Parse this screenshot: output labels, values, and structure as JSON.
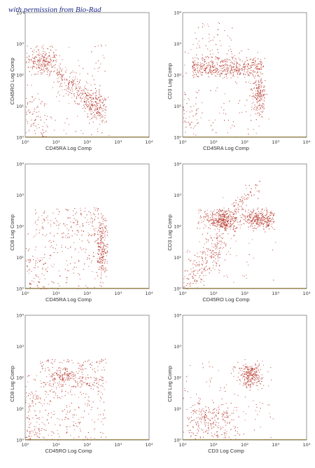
{
  "credit": "with permission from Bio-Rad",
  "colors": {
    "dots": "#b22a1e",
    "baseline": "#8a6a1a",
    "frame": "#7a7a7a",
    "credit": "#1e2a8a"
  },
  "chart_data": [
    {
      "id": "p1",
      "type": "scatter",
      "xlabel": "CD45RA Log Comp",
      "ylabel": "CD45RO Log Comp",
      "xscale": "log",
      "yscale": "log",
      "xlim": [
        1,
        10000
      ],
      "ylim": [
        1,
        10000
      ],
      "ticks": [
        "10⁰",
        "10¹",
        "10²",
        "10³",
        "10⁴"
      ],
      "grid": false,
      "clusters": [
        {
          "x": [
            1,
            10
          ],
          "y": [
            100,
            1000
          ],
          "n": 260,
          "shape": "gauss",
          "cx": 4,
          "cy": 250,
          "sx": 0.28,
          "sy": 0.25
        },
        {
          "x": [
            10,
            300
          ],
          "y": [
            8,
            200
          ],
          "n": 320,
          "shape": "diag",
          "from": [
            6,
            180
          ],
          "to": [
            250,
            10
          ],
          "width": 0.22
        },
        {
          "x": [
            80,
            400
          ],
          "y": [
            3,
            30
          ],
          "n": 180,
          "shape": "gauss",
          "cx": 200,
          "cy": 8,
          "sx": 0.25,
          "sy": 0.3
        },
        {
          "x": [
            1,
            500
          ],
          "y": [
            1,
            1000
          ],
          "n": 120,
          "shape": "uniform"
        },
        {
          "x": [
            1,
            5
          ],
          "y": [
            1,
            20
          ],
          "n": 60,
          "shape": "uniform"
        }
      ]
    },
    {
      "id": "p2",
      "type": "scatter",
      "xlabel": "CD45RA Log Comp",
      "ylabel": "CD3 Log Comp",
      "xscale": "log",
      "yscale": "log",
      "xlim": [
        1,
        10000
      ],
      "ylim": [
        1,
        10000
      ],
      "ticks": [
        "10⁰",
        "10¹",
        "10²",
        "10³",
        "10⁴"
      ],
      "grid": false,
      "clusters": [
        {
          "x": [
            2,
            400
          ],
          "y": [
            80,
            400
          ],
          "n": 520,
          "shape": "band",
          "cy": 180,
          "sy": 0.18
        },
        {
          "x": [
            150,
            450
          ],
          "y": [
            3,
            200
          ],
          "n": 200,
          "shape": "gauss",
          "cx": 300,
          "cy": 20,
          "sx": 0.12,
          "sy": 0.4
        },
        {
          "x": [
            2,
            40
          ],
          "y": [
            300,
            5000
          ],
          "n": 50,
          "shape": "uniform"
        },
        {
          "x": [
            1,
            600
          ],
          "y": [
            1,
            1000
          ],
          "n": 110,
          "shape": "uniform"
        },
        {
          "x": [
            1,
            3
          ],
          "y": [
            1,
            30
          ],
          "n": 40,
          "shape": "uniform"
        }
      ]
    },
    {
      "id": "p3",
      "type": "scatter",
      "xlabel": "CD45RA Log Comp",
      "ylabel": "CD8 Log Comp",
      "xscale": "log",
      "yscale": "log",
      "xlim": [
        1,
        10000
      ],
      "ylim": [
        1,
        10000
      ],
      "ticks": [
        "10⁰",
        "10¹",
        "10²",
        "10³",
        "10⁴"
      ],
      "grid": false,
      "clusters": [
        {
          "x": [
            2,
            300
          ],
          "y": [
            50,
            400
          ],
          "n": 150,
          "shape": "uniform"
        },
        {
          "x": [
            150,
            450
          ],
          "y": [
            2,
            300
          ],
          "n": 260,
          "shape": "gauss",
          "cx": 300,
          "cy": 20,
          "sx": 0.12,
          "sy": 0.55
        },
        {
          "x": [
            1,
            400
          ],
          "y": [
            1,
            60
          ],
          "n": 160,
          "shape": "uniform"
        },
        {
          "x": [
            1,
            5
          ],
          "y": [
            1,
            10
          ],
          "n": 50,
          "shape": "uniform"
        }
      ]
    },
    {
      "id": "p4",
      "type": "scatter",
      "xlabel": "CD45RO Log Comp",
      "ylabel": "CD3 Log Comp",
      "xscale": "log",
      "yscale": "log",
      "xlim": [
        1,
        10000
      ],
      "ylim": [
        1,
        10000
      ],
      "ticks": [
        "10⁰",
        "10¹",
        "10²",
        "10³",
        "10⁴"
      ],
      "grid": false,
      "clusters": [
        {
          "x": [
            6,
            60
          ],
          "y": [
            80,
            400
          ],
          "n": 260,
          "shape": "gauss",
          "cx": 20,
          "cy": 180,
          "sx": 0.22,
          "sy": 0.18
        },
        {
          "x": [
            100,
            900
          ],
          "y": [
            80,
            400
          ],
          "n": 240,
          "shape": "gauss",
          "cx": 300,
          "cy": 170,
          "sx": 0.25,
          "sy": 0.16
        },
        {
          "x": [
            3,
            1000
          ],
          "y": [
            80,
            400
          ],
          "n": 200,
          "shape": "band",
          "cy": 190,
          "sy": 0.15
        },
        {
          "x": [
            1,
            60
          ],
          "y": [
            1,
            150
          ],
          "n": 300,
          "shape": "diag",
          "from": [
            1.5,
            1.5
          ],
          "to": [
            40,
            120
          ],
          "width": 0.3
        },
        {
          "x": [
            30,
            400
          ],
          "y": [
            300,
            3000
          ],
          "n": 80,
          "shape": "diag",
          "from": [
            40,
            300
          ],
          "to": [
            350,
            3000
          ],
          "width": 0.12
        },
        {
          "x": [
            1,
            1000
          ],
          "y": [
            1,
            1000
          ],
          "n": 60,
          "shape": "uniform"
        }
      ]
    },
    {
      "id": "p5",
      "type": "scatter",
      "xlabel": "CD45RO Log Comp",
      "ylabel": "CD8 Log Comp",
      "xscale": "log",
      "yscale": "log",
      "xlim": [
        1,
        10000
      ],
      "ylim": [
        1,
        10000
      ],
      "ticks": [
        "10⁰",
        "10¹",
        "10²",
        "10³",
        "10⁴"
      ],
      "grid": false,
      "clusters": [
        {
          "x": [
            3,
            400
          ],
          "y": [
            50,
            400
          ],
          "n": 220,
          "shape": "uniform"
        },
        {
          "x": [
            1,
            400
          ],
          "y": [
            1,
            120
          ],
          "n": 280,
          "shape": "uniform"
        },
        {
          "x": [
            6,
            40
          ],
          "y": [
            80,
            250
          ],
          "n": 60,
          "shape": "gauss",
          "cx": 15,
          "cy": 130,
          "sx": 0.2,
          "sy": 0.12
        },
        {
          "x": [
            1,
            3
          ],
          "y": [
            1,
            30
          ],
          "n": 70,
          "shape": "uniform"
        }
      ]
    },
    {
      "id": "p6",
      "type": "scatter",
      "xlabel": "CD3 Log Comp",
      "ylabel": "CD8 Log Comp",
      "xscale": "log",
      "yscale": "log",
      "xlim": [
        1,
        10000
      ],
      "ylim": [
        1,
        10000
      ],
      "ticks": [
        "10⁰",
        "10¹",
        "10²",
        "10³",
        "10⁴"
      ],
      "grid": false,
      "clusters": [
        {
          "x": [
            40,
            400
          ],
          "y": [
            40,
            400
          ],
          "n": 260,
          "shape": "gauss",
          "cx": 150,
          "cy": 120,
          "sx": 0.18,
          "sy": 0.2
        },
        {
          "x": [
            1,
            60
          ],
          "y": [
            1,
            40
          ],
          "n": 280,
          "shape": "gauss",
          "cx": 8,
          "cy": 4,
          "sx": 0.45,
          "sy": 0.35
        },
        {
          "x": [
            1,
            1000
          ],
          "y": [
            1,
            400
          ],
          "n": 100,
          "shape": "uniform"
        }
      ]
    }
  ]
}
